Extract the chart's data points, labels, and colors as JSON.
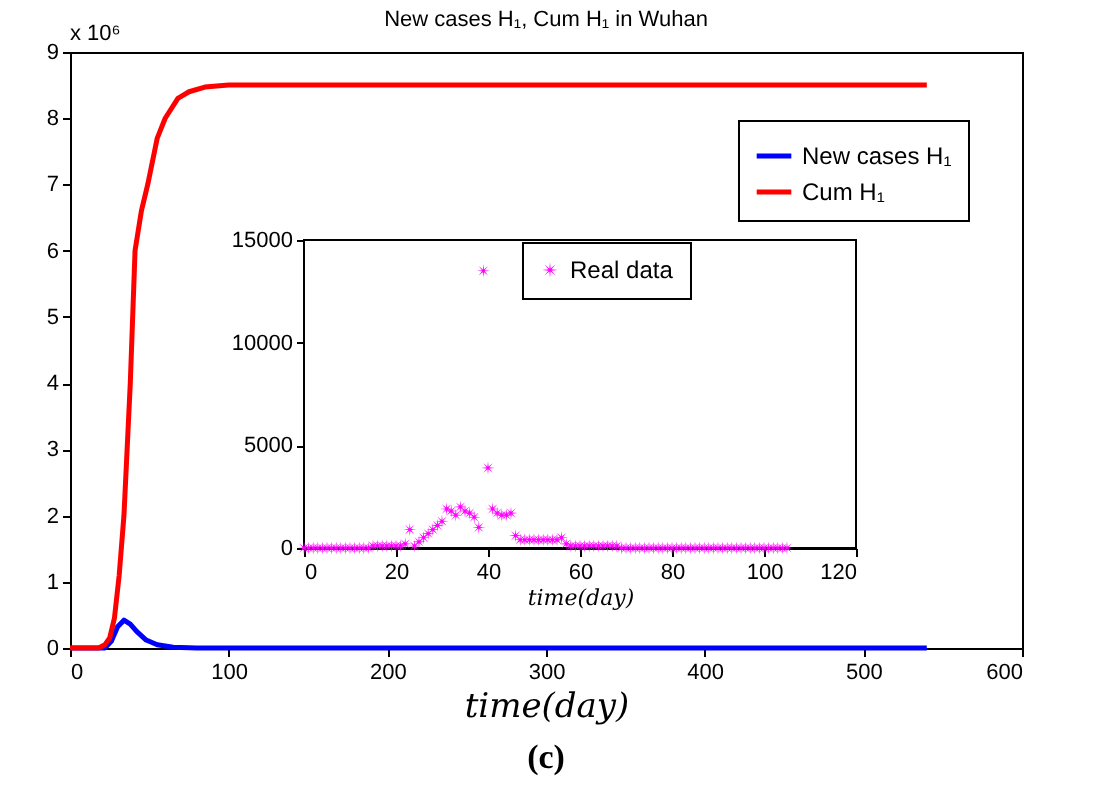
{
  "chart_data": [
    {
      "type": "line",
      "title": "New cases H₁,  Cum H₁ in Wuhan",
      "xlabel": "time(day)",
      "series": [
        {
          "name": "New cases H₁",
          "color": "#0000ff",
          "x": [
            0,
            22,
            26,
            30,
            34,
            38,
            42,
            48,
            55,
            65,
            80,
            540
          ],
          "values": [
            0,
            0,
            0.1,
            0.32,
            0.42,
            0.36,
            0.25,
            0.12,
            0.05,
            0.01,
            0,
            0
          ]
        },
        {
          "name": "Cum H₁",
          "color": "#ff0000",
          "x": [
            0,
            18,
            22,
            25,
            28,
            31,
            34,
            38,
            41,
            45,
            49,
            55,
            60,
            68,
            75,
            85,
            100,
            540
          ],
          "values": [
            0,
            0,
            0.05,
            0.15,
            0.45,
            1.1,
            2,
            4,
            6,
            6.6,
            7,
            7.7,
            8,
            8.3,
            8.4,
            8.47,
            8.5,
            8.5
          ]
        }
      ],
      "xlim": [
        0,
        600
      ],
      "xticks": [
        0,
        100,
        200,
        300,
        400,
        500,
        600
      ],
      "ylim": [
        0,
        9
      ],
      "yticks": [
        0,
        1,
        2,
        3,
        4,
        5,
        6,
        7,
        8,
        9
      ],
      "legend": "top right",
      "grid": false,
      "annotations": [
        "x 10⁶",
        "(c)"
      ]
    },
    {
      "type": "scatter",
      "xlabel": "time(day)",
      "marker": "star",
      "legend": "top",
      "grid": false,
      "x": [
        0,
        1,
        2,
        3,
        4,
        5,
        6,
        7,
        8,
        9,
        10,
        11,
        12,
        13,
        14,
        15,
        16,
        17,
        18,
        19,
        20,
        21,
        22,
        23,
        24,
        25,
        26,
        27,
        28,
        29,
        30,
        31,
        32,
        33,
        34,
        35,
        36,
        37,
        38,
        39,
        40,
        41,
        42,
        43,
        44,
        45,
        46,
        47,
        48,
        49,
        50,
        51,
        52,
        53,
        54,
        55,
        56,
        57,
        58,
        59,
        60,
        61,
        62,
        63,
        64,
        65,
        66,
        67,
        68,
        69,
        70,
        71,
        72,
        73,
        74,
        75,
        76,
        77,
        78,
        79,
        80,
        81,
        82,
        83,
        84,
        85,
        86,
        87,
        88,
        89,
        90,
        91,
        92,
        93,
        94,
        95,
        96,
        97,
        98,
        99,
        100,
        101,
        102,
        103,
        104,
        105
      ],
      "series": [
        {
          "name": "Real data",
          "color": "#ff00ff",
          "values": [
            0,
            0,
            0,
            0,
            0,
            0,
            0,
            0,
            0,
            0,
            0,
            0,
            0,
            0,
            0,
            100,
            100,
            100,
            100,
            100,
            100,
            100,
            200,
            900,
            100,
            300,
            500,
            700,
            900,
            1100,
            1300,
            1900,
            1800,
            1600,
            2000,
            1800,
            1700,
            1500,
            1000,
            13500,
            3900,
            1900,
            1700,
            1600,
            1600,
            1700,
            600,
            400,
            400,
            400,
            400,
            400,
            400,
            400,
            400,
            400,
            500,
            200,
            100,
            100,
            100,
            100,
            100,
            100,
            100,
            100,
            100,
            100,
            100,
            0,
            0,
            0,
            0,
            0,
            0,
            0,
            0,
            0,
            0,
            0,
            0,
            0,
            0,
            0,
            0,
            0,
            0,
            0,
            0,
            0,
            0,
            0,
            0,
            0,
            0,
            0,
            0,
            0,
            0,
            0,
            0,
            0,
            0,
            0,
            0,
            0
          ]
        }
      ],
      "xlim": [
        0,
        120
      ],
      "xticks": [
        0,
        20,
        40,
        60,
        80,
        100,
        120
      ],
      "ylim": [
        0,
        15000
      ],
      "yticks": [
        0,
        5000,
        10000,
        15000
      ]
    }
  ]
}
